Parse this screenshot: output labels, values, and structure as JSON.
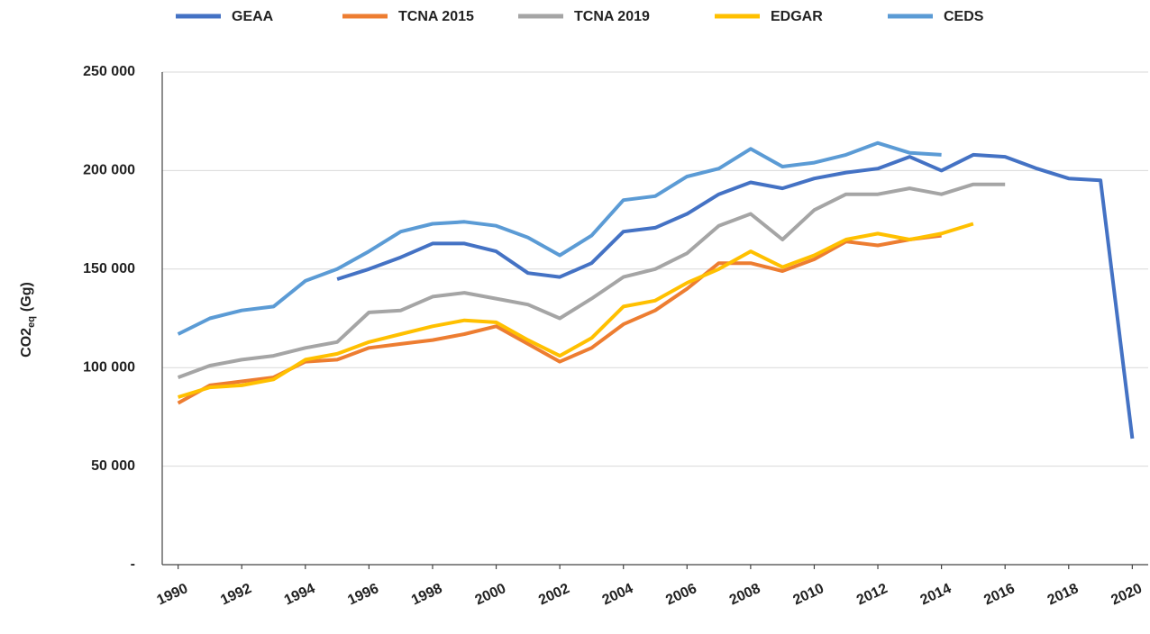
{
  "chart_data": {
    "type": "line",
    "ylabel": "CO2",
    "ylabel_sub": "eq",
    "ylabel_unit": "(Gg)",
    "x": [
      1990,
      1991,
      1992,
      1993,
      1994,
      1995,
      1996,
      1997,
      1998,
      1999,
      2000,
      2001,
      2002,
      2003,
      2004,
      2005,
      2006,
      2007,
      2008,
      2009,
      2010,
      2011,
      2012,
      2013,
      2014,
      2015,
      2016,
      2017,
      2018,
      2019,
      2020
    ],
    "xlim": [
      1989.5,
      2020.5
    ],
    "xticks": [
      1990,
      1992,
      1994,
      1996,
      1998,
      2000,
      2002,
      2004,
      2006,
      2008,
      2010,
      2012,
      2014,
      2016,
      2018,
      2020
    ],
    "ylim": [
      0,
      250000
    ],
    "yticks": [
      {
        "value": 0,
        "label": "-"
      },
      {
        "value": 50000,
        "label": "50 000"
      },
      {
        "value": 100000,
        "label": "100 000"
      },
      {
        "value": 150000,
        "label": "150 000"
      },
      {
        "value": 200000,
        "label": "200 000"
      },
      {
        "value": 250000,
        "label": "250 000"
      }
    ],
    "grid": true,
    "legend": "top",
    "series": [
      {
        "name": "GEAA",
        "color": "#4472c4",
        "values": [
          null,
          null,
          null,
          null,
          null,
          144900,
          150000,
          156000,
          163000,
          163000,
          159000,
          148000,
          146000,
          153000,
          169000,
          171000,
          178000,
          188000,
          194000,
          191000,
          196000,
          199000,
          201000,
          207000,
          200000,
          208000,
          207000,
          201000,
          196000,
          195000,
          64000
        ]
      },
      {
        "name": "TCNA 2015",
        "color": "#ed7d31",
        "values": [
          82000,
          91000,
          93000,
          95000,
          103000,
          104000,
          110000,
          112000,
          114000,
          117000,
          121000,
          112000,
          103000,
          110000,
          122000,
          129000,
          140000,
          153000,
          153000,
          149000,
          155000,
          164000,
          162000,
          165000,
          167000,
          null,
          null,
          null,
          null,
          null,
          null
        ]
      },
      {
        "name": "TCNA 2019",
        "color": "#a5a5a5",
        "values": [
          95000,
          101000,
          104000,
          106000,
          110000,
          113000,
          128000,
          129000,
          136000,
          138000,
          135000,
          132000,
          125000,
          135000,
          146000,
          150000,
          158000,
          172000,
          178000,
          165000,
          180000,
          188000,
          188000,
          191000,
          188000,
          193000,
          193000,
          null,
          null,
          null,
          null
        ]
      },
      {
        "name": "EDGAR",
        "color": "#ffc000",
        "values": [
          85000,
          90000,
          91000,
          94000,
          104000,
          107000,
          113000,
          117000,
          121000,
          124000,
          123000,
          114000,
          106000,
          115000,
          131000,
          134000,
          143000,
          150000,
          159000,
          151000,
          157000,
          165000,
          168000,
          165000,
          168000,
          173000,
          null,
          null,
          null,
          null,
          null
        ]
      },
      {
        "name": "CEDS",
        "color": "#5b9bd5",
        "values": [
          117000,
          125000,
          129000,
          131000,
          144000,
          150000,
          159000,
          169000,
          173000,
          174000,
          172000,
          166000,
          157000,
          167000,
          185000,
          187000,
          197000,
          201000,
          211000,
          202000,
          204000,
          208000,
          214000,
          209000,
          208000,
          null,
          null,
          null,
          null,
          null,
          null
        ]
      }
    ]
  }
}
